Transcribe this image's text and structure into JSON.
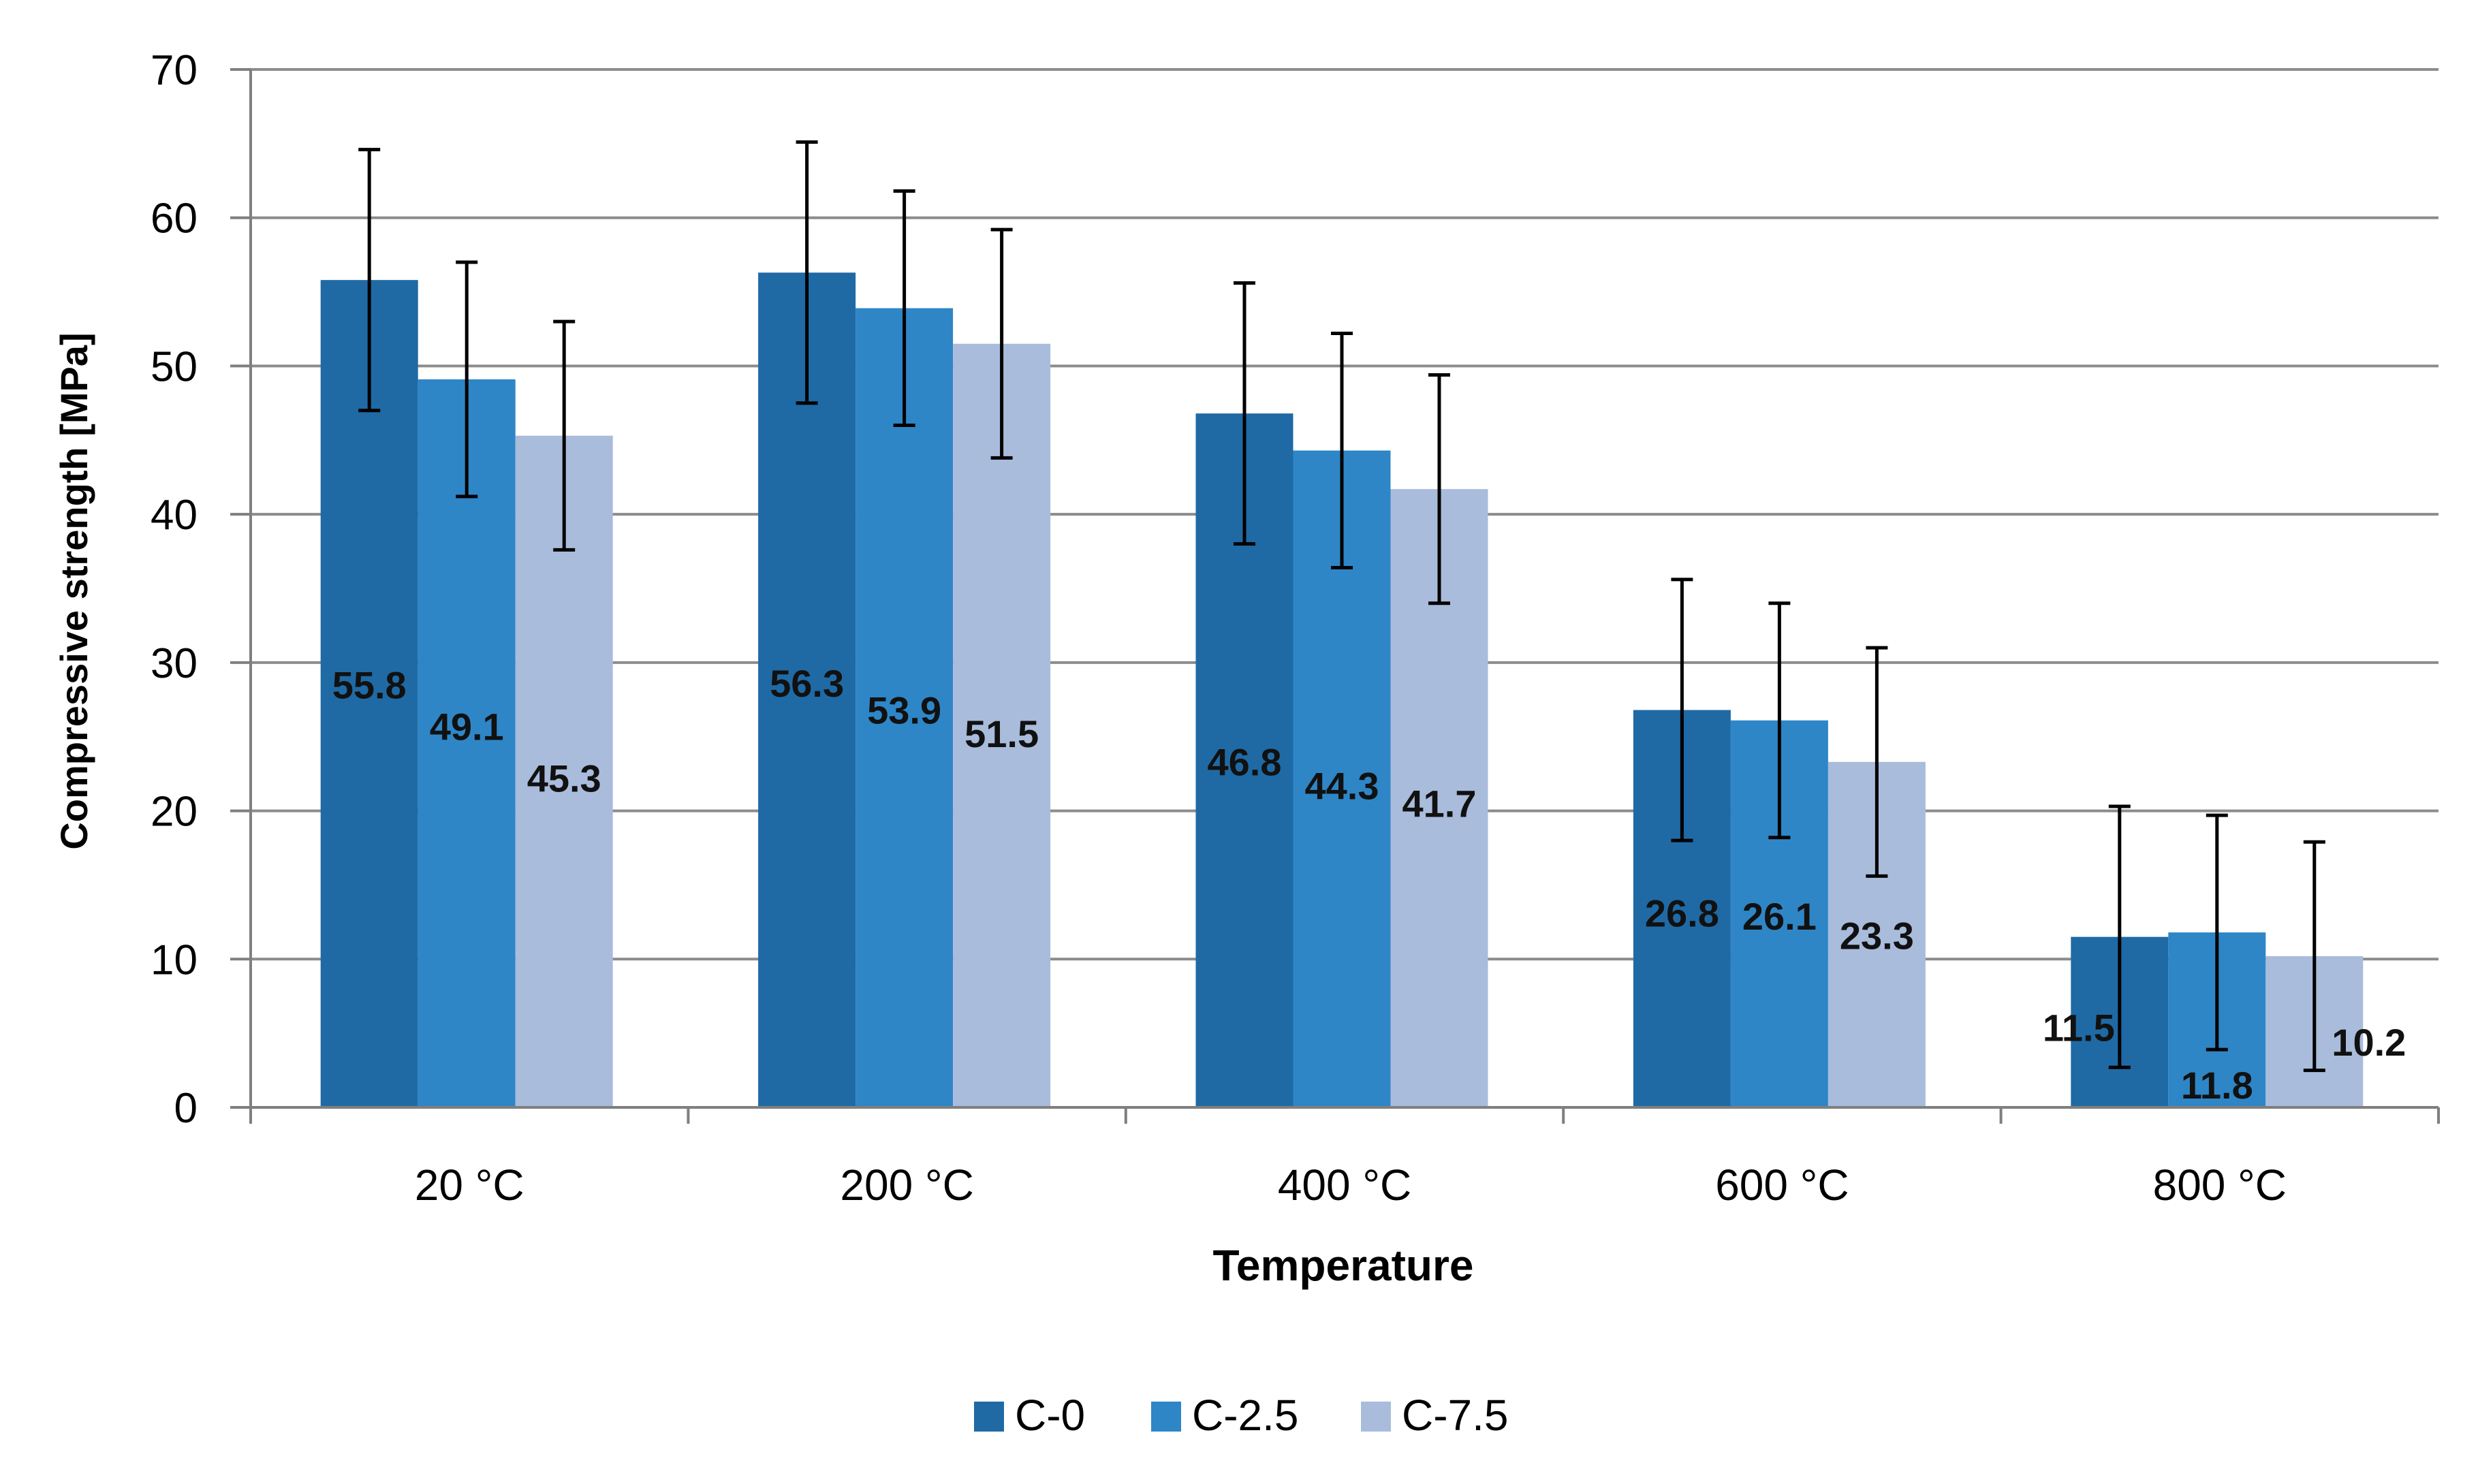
{
  "chart_data": {
    "type": "bar",
    "title": "",
    "xlabel": "Temperature",
    "ylabel": "Compressive strength [MPa]",
    "categories": [
      "20 °C",
      "200 °C",
      "400 °C",
      "600 °C",
      "800 °C"
    ],
    "ylim": [
      0,
      70
    ],
    "y_ticks": [
      0,
      10,
      20,
      30,
      40,
      50,
      60,
      70
    ],
    "y_tick_labels": [
      "0",
      "10",
      "20",
      "30",
      "40",
      "50",
      "60",
      "70"
    ],
    "grid": true,
    "legend_position": "bottom-center",
    "series": [
      {
        "name": "C-0",
        "color": "#1f6aa5",
        "values": [
          55.8,
          56.3,
          46.8,
          26.8,
          11.5
        ],
        "labels": [
          "55.8",
          "56.3",
          "46.8",
          "26.8",
          "11.5"
        ],
        "error_low": [
          47.0,
          47.5,
          38.0,
          18.0,
          2.7
        ],
        "error_high": [
          64.6,
          65.1,
          55.6,
          35.6,
          20.3
        ]
      },
      {
        "name": "C-2.5",
        "color": "#2e86c7",
        "values": [
          49.1,
          53.9,
          44.3,
          26.1,
          11.8
        ],
        "labels": [
          "49.1",
          "53.9",
          "44.3",
          "26.1",
          "11.8"
        ],
        "error_low": [
          41.2,
          46.0,
          36.4,
          18.2,
          3.9
        ],
        "error_high": [
          57.0,
          61.8,
          52.2,
          34.0,
          19.7
        ]
      },
      {
        "name": "C-7.5",
        "color": "#a9bcdc",
        "values": [
          45.3,
          51.5,
          41.7,
          23.3,
          10.2
        ],
        "labels": [
          "45.3",
          "51.5",
          "41.7",
          "23.3",
          "10.2"
        ],
        "error_low": [
          37.6,
          43.8,
          34.0,
          15.6,
          2.5
        ],
        "error_high": [
          53.0,
          59.2,
          49.4,
          31.0,
          17.9
        ]
      }
    ]
  }
}
